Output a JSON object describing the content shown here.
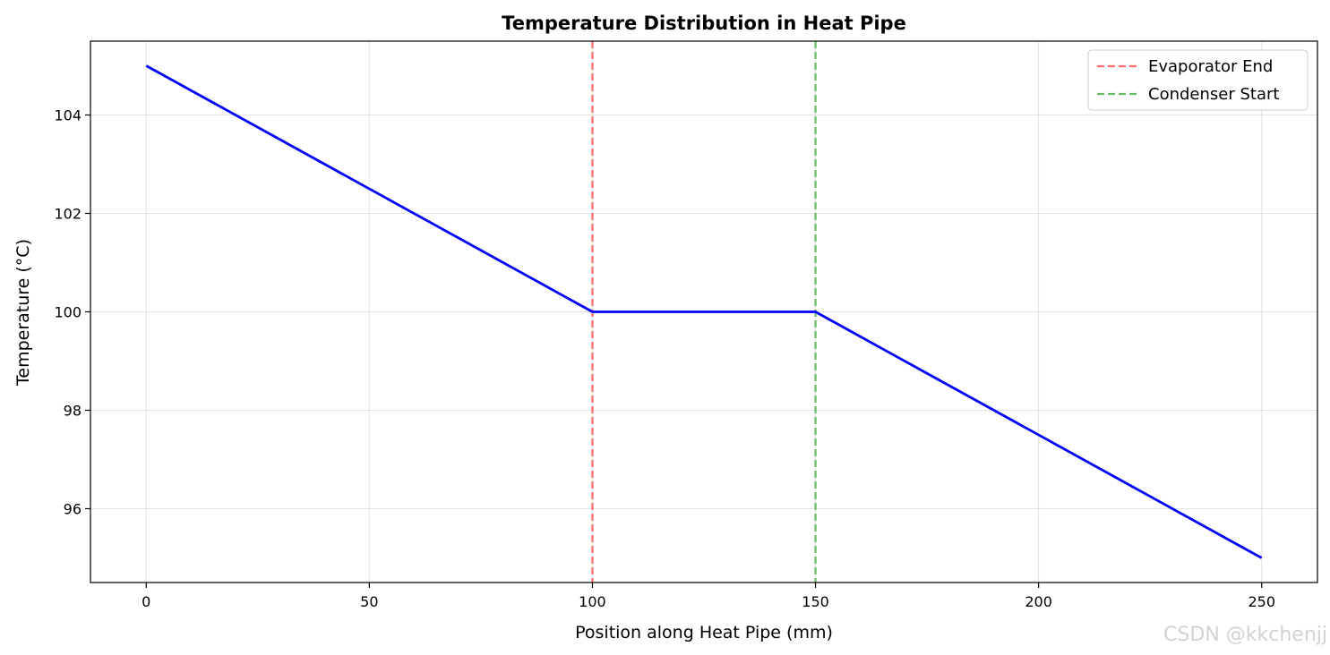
{
  "chart_data": {
    "type": "line",
    "title": "Temperature Distribution in Heat Pipe",
    "xlabel": "Position along Heat Pipe (mm)",
    "ylabel": "Temperature (°C)",
    "xlim": [
      -12.5,
      262.5
    ],
    "ylim": [
      94.5,
      105.5
    ],
    "xticks": [
      0,
      50,
      100,
      150,
      200,
      250
    ],
    "yticks": [
      96,
      98,
      100,
      102,
      104
    ],
    "grid": true,
    "series": [
      {
        "name": "Temperature",
        "color": "#0000ff",
        "x": [
          0,
          100,
          150,
          250
        ],
        "y": [
          105,
          100,
          100,
          95
        ]
      }
    ],
    "vlines": [
      {
        "name": "Evaporator End",
        "x": 100,
        "color": "#ff6b6b",
        "style": "dashed"
      },
      {
        "name": "Condenser Start",
        "x": 150,
        "color": "#66bb66",
        "style": "dashed"
      }
    ],
    "legend": {
      "placement": "top-right",
      "entries": [
        "Evaporator End",
        "Condenser Start"
      ]
    }
  },
  "watermark": "CSDN @kkchenjj"
}
